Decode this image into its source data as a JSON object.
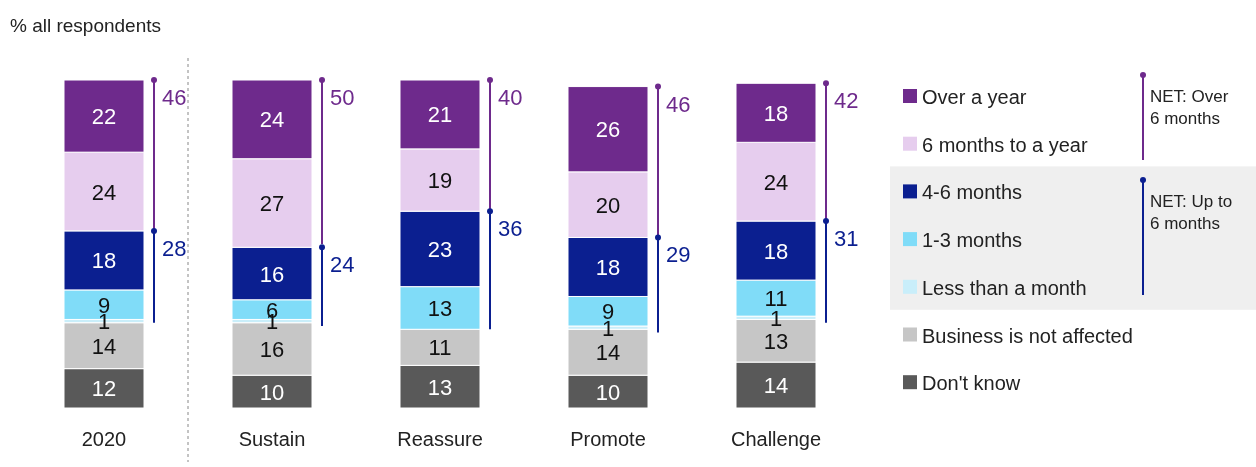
{
  "chart_data": {
    "type": "bar",
    "stacked": true,
    "ylabel": "% all respondents",
    "categories": [
      "2020",
      "Sustain",
      "Reassure",
      "Promote",
      "Challenge"
    ],
    "ylim": [
      0,
      100
    ],
    "tick_labels": "x",
    "legend": "right",
    "grid": false,
    "series": [
      {
        "name": "Don't know",
        "color": "#595959",
        "values": [
          12,
          10,
          13,
          10,
          14
        ],
        "value_labels": [
          "12",
          "10",
          "13",
          "10",
          "14"
        ]
      },
      {
        "name": "Business is not affected",
        "color": "#c6c6c6",
        "values": [
          14,
          16,
          11,
          14,
          13
        ],
        "value_labels": [
          "14",
          "16",
          "11",
          "14",
          "13"
        ]
      },
      {
        "name": "Less than a month",
        "color": "#c9eefa",
        "values": [
          1,
          1,
          0,
          1,
          1
        ],
        "value_labels": [
          "1",
          "1",
          null,
          "1",
          "1"
        ]
      },
      {
        "name": "1-3 months",
        "color": "#80dcf8",
        "values": [
          9,
          6,
          13,
          9,
          11
        ],
        "value_labels": [
          "9",
          "6",
          "13",
          "9",
          "11"
        ]
      },
      {
        "name": "4-6 months",
        "color": "#0b1f90",
        "values": [
          18,
          16,
          23,
          18,
          18
        ],
        "value_labels": [
          "18",
          "16",
          "23",
          "18",
          "18"
        ]
      },
      {
        "name": "6 months to a year",
        "color": "#e6cdee",
        "values": [
          24,
          27,
          19,
          20,
          24
        ],
        "value_labels": [
          "24",
          "27",
          "19",
          "20",
          "24"
        ]
      },
      {
        "name": "Over a year",
        "color": "#6e2a8c",
        "values": [
          22,
          24,
          21,
          26,
          18
        ],
        "value_labels": [
          "22",
          "24",
          "21",
          "26",
          "18"
        ]
      }
    ],
    "annotations": [
      {
        "text": "46",
        "x": "2020",
        "y": 100
      },
      {
        "text": "28",
        "x": "2020",
        "y": 54
      },
      {
        "text": "50",
        "x": "Sustain",
        "y": 100
      },
      {
        "text": "24",
        "x": "Sustain",
        "y": 49
      },
      {
        "text": "40",
        "x": "Reassure",
        "y": 100
      },
      {
        "text": "36",
        "x": "Reassure",
        "y": 60
      },
      {
        "text": "46",
        "x": "Promote",
        "y": 98
      },
      {
        "text": "29",
        "x": "Promote",
        "y": 52
      },
      {
        "text": "42",
        "x": "Challenge",
        "y": 99
      },
      {
        "text": "31",
        "x": "Challenge",
        "y": 57
      },
      "NET: Over 6 months",
      "NET: Up to 6 months"
    ]
  }
}
